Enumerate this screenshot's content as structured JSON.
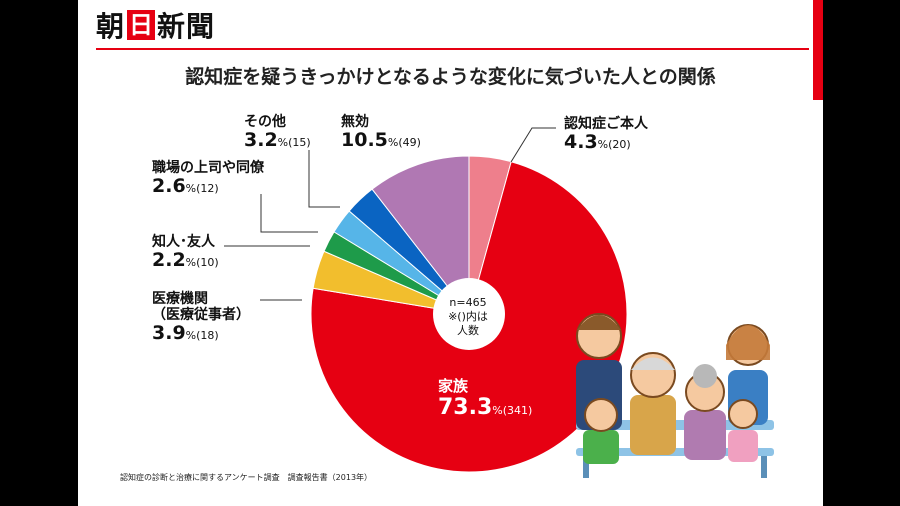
{
  "brand": {
    "logo_left": "朝",
    "logo_box": "日",
    "logo_right": "新聞",
    "accent": "#e60012"
  },
  "title": "認知症を疑うきっかけとなるような変化に気づいた人との関係",
  "center_note": {
    "n": "n=465",
    "note1": "※()内は",
    "note2": "人数"
  },
  "source": "認知症の診断と治療に関するアンケート調査　調査報告書（2013年）",
  "chart_data": {
    "type": "pie",
    "title": "認知症を疑うきっかけとなるような変化に気づいた人との関係",
    "unit": "%",
    "start": "12 o'clock, clockwise",
    "slices": [
      {
        "label": "認知症ご本人",
        "label_lines": [
          "認知症ご本人"
        ],
        "value": 4.3,
        "pct_text": "4.3",
        "count_text": "(20)",
        "color": "#ee7f8c"
      },
      {
        "label": "家族",
        "label_lines": [
          "家族"
        ],
        "value": 73.3,
        "pct_text": "73.3",
        "count_text": "(341)",
        "color": "#e60012"
      },
      {
        "label": "医療機関（医療従事者）",
        "label_lines": [
          "医療機関",
          "（医療従事者）"
        ],
        "value": 3.9,
        "pct_text": "3.9",
        "count_text": "(18)",
        "color": "#f2be2d"
      },
      {
        "label": "知人･友人",
        "label_lines": [
          "知人･友人"
        ],
        "value": 2.2,
        "pct_text": "2.2",
        "count_text": "(10)",
        "color": "#1e9b4a"
      },
      {
        "label": "職場の上司や同僚",
        "label_lines": [
          "職場の上司や同僚"
        ],
        "value": 2.6,
        "pct_text": "2.6",
        "count_text": "(12)",
        "color": "#56b5e8"
      },
      {
        "label": "その他",
        "label_lines": [
          "その他"
        ],
        "value": 3.2,
        "pct_text": "3.2",
        "count_text": "(15)",
        "color": "#0a64c2"
      },
      {
        "label": "無効",
        "label_lines": [
          "無効"
        ],
        "value": 10.5,
        "pct_text": "10.5",
        "count_text": "(49)",
        "color": "#b078b3"
      }
    ]
  }
}
